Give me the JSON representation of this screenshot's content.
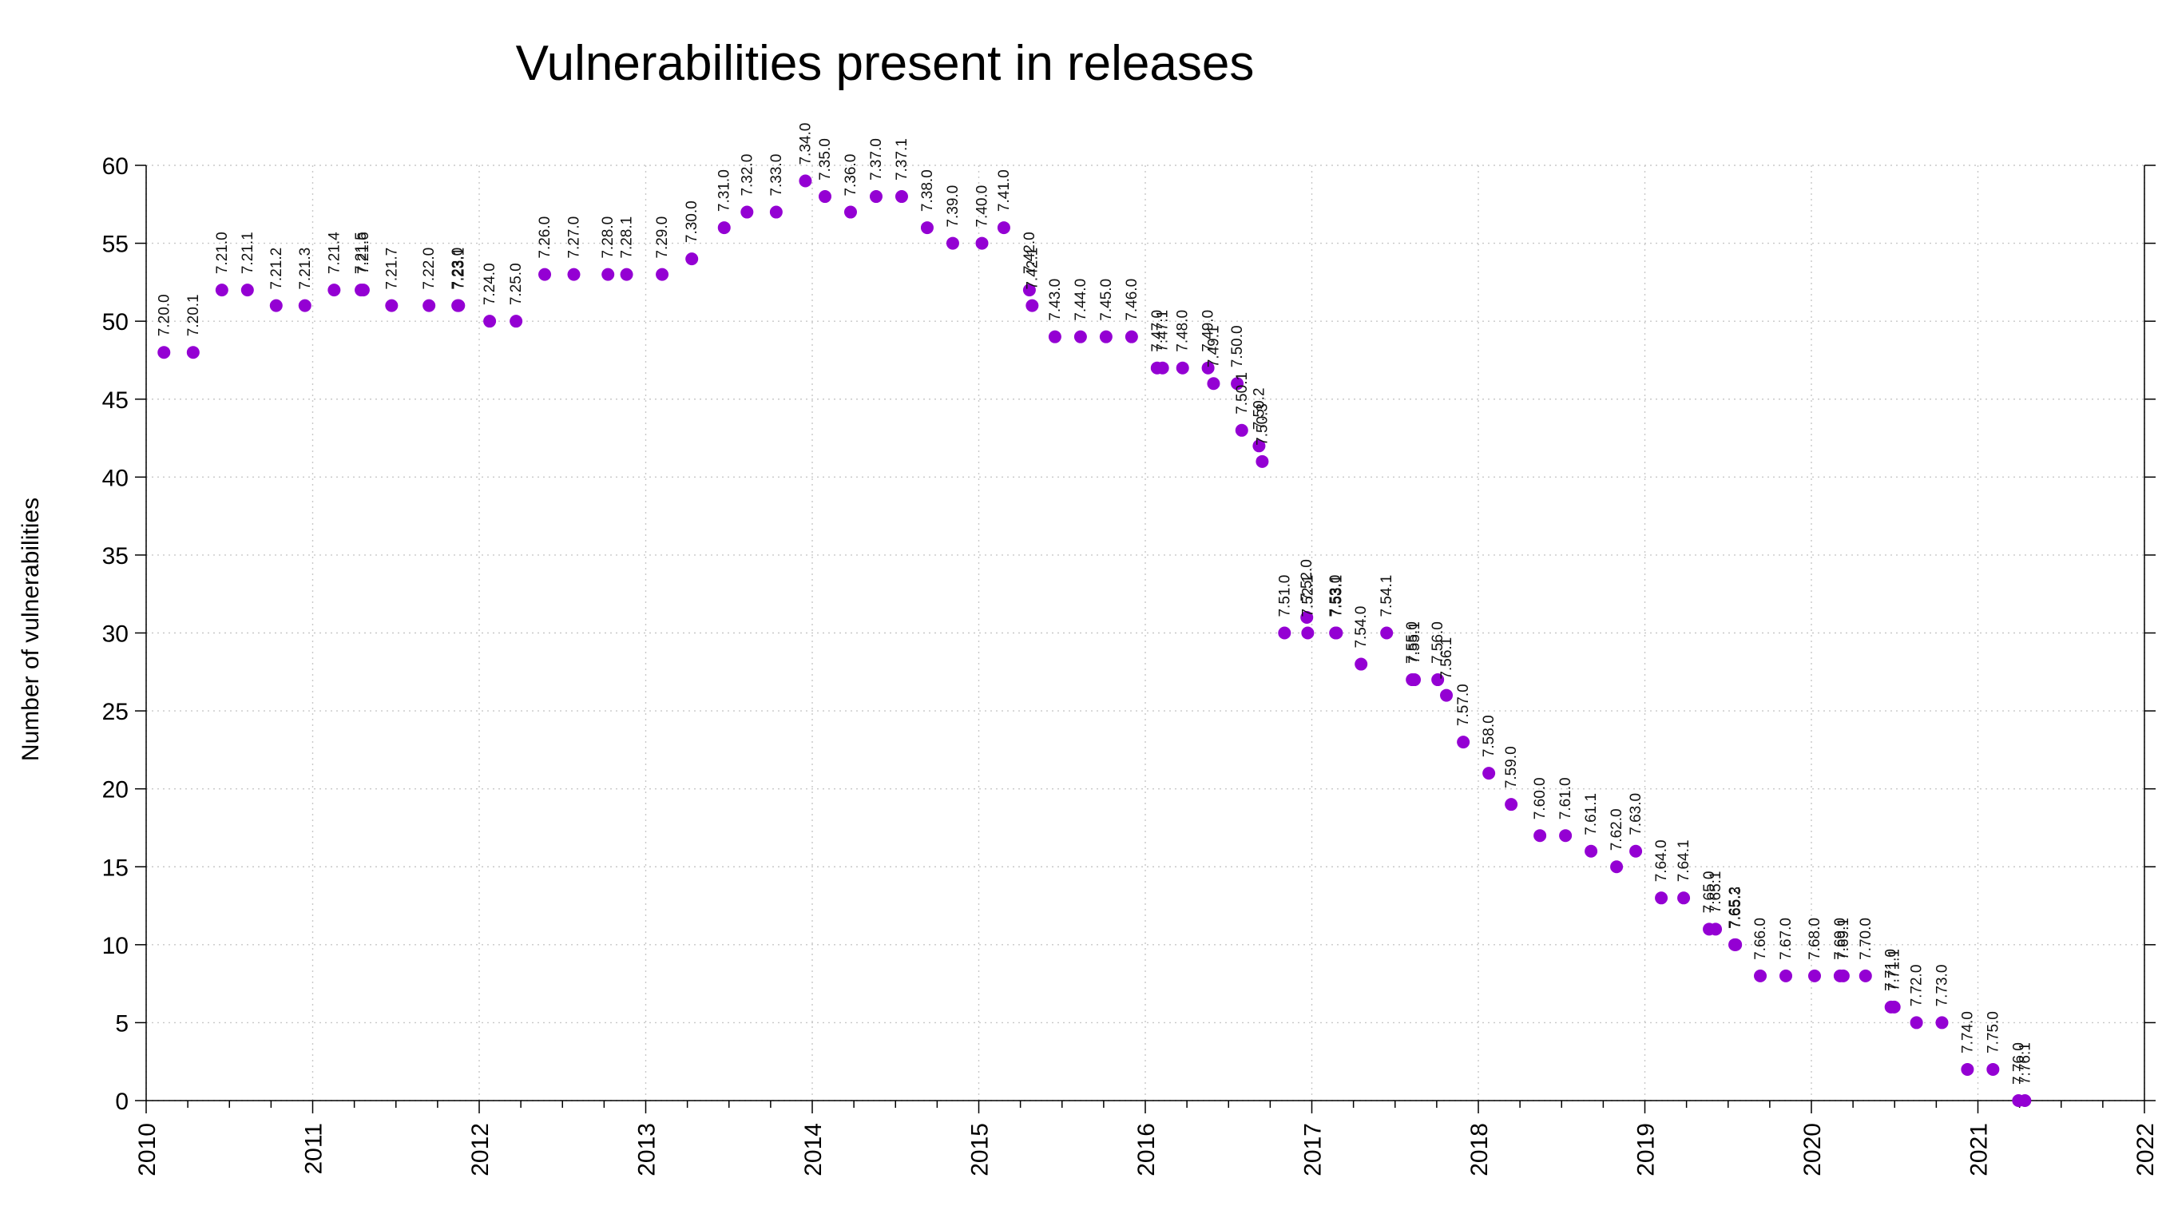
{
  "chart_data": {
    "type": "scatter",
    "title": "Vulnerabilities present in releases",
    "xlabel": "",
    "ylabel": "Number of vulnerabilities",
    "xlim": [
      "2010-01-01",
      "2022-01-01"
    ],
    "ylim": [
      0,
      60
    ],
    "x_ticks": [
      "2010",
      "2011",
      "2012",
      "2013",
      "2014",
      "2015",
      "2016",
      "2017",
      "2018",
      "2019",
      "2020",
      "2021",
      "2022"
    ],
    "y_ticks": [
      0,
      5,
      10,
      15,
      20,
      25,
      30,
      35,
      40,
      45,
      50,
      55,
      60
    ],
    "grid": true,
    "marker_color": "#9400d3",
    "points": [
      {
        "label": "7.20.0",
        "x": "2010-02-09",
        "y": 48
      },
      {
        "label": "7.20.1",
        "x": "2010-04-14",
        "y": 48
      },
      {
        "label": "7.21.0",
        "x": "2010-06-16",
        "y": 52
      },
      {
        "label": "7.21.1",
        "x": "2010-08-11",
        "y": 52
      },
      {
        "label": "7.21.2",
        "x": "2010-10-13",
        "y": 51
      },
      {
        "label": "7.21.3",
        "x": "2010-12-15",
        "y": 51
      },
      {
        "label": "7.21.4",
        "x": "2011-02-17",
        "y": 52
      },
      {
        "label": "7.21.5",
        "x": "2011-04-17",
        "y": 52
      },
      {
        "label": "7.21.6",
        "x": "2011-04-22",
        "y": 52
      },
      {
        "label": "7.21.7",
        "x": "2011-06-23",
        "y": 51
      },
      {
        "label": "7.22.0",
        "x": "2011-09-13",
        "y": 51
      },
      {
        "label": "7.23.0",
        "x": "2011-11-15",
        "y": 51
      },
      {
        "label": "7.23.1",
        "x": "2011-11-17",
        "y": 51
      },
      {
        "label": "7.24.0",
        "x": "2012-01-24",
        "y": 50
      },
      {
        "label": "7.25.0",
        "x": "2012-03-22",
        "y": 50
      },
      {
        "label": "7.26.0",
        "x": "2012-05-24",
        "y": 53
      },
      {
        "label": "7.27.0",
        "x": "2012-07-27",
        "y": 53
      },
      {
        "label": "7.28.0",
        "x": "2012-10-10",
        "y": 53
      },
      {
        "label": "7.28.1",
        "x": "2012-11-20",
        "y": 53
      },
      {
        "label": "7.29.0",
        "x": "2013-02-06",
        "y": 53
      },
      {
        "label": "7.30.0",
        "x": "2013-04-12",
        "y": 54
      },
      {
        "label": "7.31.0",
        "x": "2013-06-22",
        "y": 56
      },
      {
        "label": "7.32.0",
        "x": "2013-08-11",
        "y": 57
      },
      {
        "label": "7.33.0",
        "x": "2013-10-14",
        "y": 57
      },
      {
        "label": "7.34.0",
        "x": "2013-12-17",
        "y": 59
      },
      {
        "label": "7.35.0",
        "x": "2014-01-29",
        "y": 58
      },
      {
        "label": "7.36.0",
        "x": "2014-03-26",
        "y": 57
      },
      {
        "label": "7.37.0",
        "x": "2014-05-21",
        "y": 58
      },
      {
        "label": "7.37.1",
        "x": "2014-07-16",
        "y": 58
      },
      {
        "label": "7.38.0",
        "x": "2014-09-10",
        "y": 56
      },
      {
        "label": "7.39.0",
        "x": "2014-11-05",
        "y": 55
      },
      {
        "label": "7.40.0",
        "x": "2015-01-08",
        "y": 55
      },
      {
        "label": "7.41.0",
        "x": "2015-02-25",
        "y": 56
      },
      {
        "label": "7.42.0",
        "x": "2015-04-22",
        "y": 52
      },
      {
        "label": "7.42.1",
        "x": "2015-04-28",
        "y": 51
      },
      {
        "label": "7.43.0",
        "x": "2015-06-17",
        "y": 49
      },
      {
        "label": "7.44.0",
        "x": "2015-08-12",
        "y": 49
      },
      {
        "label": "7.45.0",
        "x": "2015-10-07",
        "y": 49
      },
      {
        "label": "7.46.0",
        "x": "2015-12-02",
        "y": 49
      },
      {
        "label": "7.47.0",
        "x": "2016-01-27",
        "y": 47
      },
      {
        "label": "7.47.1",
        "x": "2016-02-08",
        "y": 47
      },
      {
        "label": "7.48.0",
        "x": "2016-03-23",
        "y": 47
      },
      {
        "label": "7.49.0",
        "x": "2016-05-18",
        "y": 47
      },
      {
        "label": "7.49.1",
        "x": "2016-05-30",
        "y": 46
      },
      {
        "label": "7.50.0",
        "x": "2016-07-21",
        "y": 46
      },
      {
        "label": "7.50.1",
        "x": "2016-07-31",
        "y": 43
      },
      {
        "label": "7.50.2",
        "x": "2016-09-07",
        "y": 42
      },
      {
        "label": "7.50.3",
        "x": "2016-09-14",
        "y": 41
      },
      {
        "label": "7.51.0",
        "x": "2016-11-02",
        "y": 30
      },
      {
        "label": "7.52.0",
        "x": "2016-12-21",
        "y": 31
      },
      {
        "label": "7.52.1",
        "x": "2016-12-23",
        "y": 30
      },
      {
        "label": "7.53.0",
        "x": "2017-02-22",
        "y": 30
      },
      {
        "label": "7.53.1",
        "x": "2017-02-24",
        "y": 30
      },
      {
        "label": "7.54.0",
        "x": "2017-04-19",
        "y": 28
      },
      {
        "label": "7.54.1",
        "x": "2017-06-14",
        "y": 30
      },
      {
        "label": "7.55.0",
        "x": "2017-08-09",
        "y": 27
      },
      {
        "label": "7.55.1",
        "x": "2017-08-14",
        "y": 27
      },
      {
        "label": "7.56.0",
        "x": "2017-10-04",
        "y": 27
      },
      {
        "label": "7.56.1",
        "x": "2017-10-23",
        "y": 26
      },
      {
        "label": "7.57.0",
        "x": "2017-11-29",
        "y": 23
      },
      {
        "label": "7.58.0",
        "x": "2018-01-24",
        "y": 21
      },
      {
        "label": "7.59.0",
        "x": "2018-03-14",
        "y": 19
      },
      {
        "label": "7.60.0",
        "x": "2018-05-16",
        "y": 17
      },
      {
        "label": "7.61.0",
        "x": "2018-07-11",
        "y": 17
      },
      {
        "label": "7.61.1",
        "x": "2018-09-05",
        "y": 16
      },
      {
        "label": "7.62.0",
        "x": "2018-10-31",
        "y": 15
      },
      {
        "label": "7.63.0",
        "x": "2018-12-12",
        "y": 16
      },
      {
        "label": "7.64.0",
        "x": "2019-02-06",
        "y": 13
      },
      {
        "label": "7.64.1",
        "x": "2019-03-27",
        "y": 13
      },
      {
        "label": "7.65.0",
        "x": "2019-05-22",
        "y": 11
      },
      {
        "label": "7.65.1",
        "x": "2019-06-05",
        "y": 11
      },
      {
        "label": "7.65.2",
        "x": "2019-07-17",
        "y": 10
      },
      {
        "label": "7.65.3",
        "x": "2019-07-19",
        "y": 10
      },
      {
        "label": "7.66.0",
        "x": "2019-09-11",
        "y": 8
      },
      {
        "label": "7.67.0",
        "x": "2019-11-06",
        "y": 8
      },
      {
        "label": "7.68.0",
        "x": "2020-01-08",
        "y": 8
      },
      {
        "label": "7.69.0",
        "x": "2020-03-04",
        "y": 8
      },
      {
        "label": "7.69.1",
        "x": "2020-03-11",
        "y": 8
      },
      {
        "label": "7.70.0",
        "x": "2020-04-29",
        "y": 8
      },
      {
        "label": "7.71.0",
        "x": "2020-06-24",
        "y": 6
      },
      {
        "label": "7.71.1",
        "x": "2020-07-01",
        "y": 6
      },
      {
        "label": "7.72.0",
        "x": "2020-08-19",
        "y": 5
      },
      {
        "label": "7.73.0",
        "x": "2020-10-14",
        "y": 5
      },
      {
        "label": "7.74.0",
        "x": "2020-12-09",
        "y": 2
      },
      {
        "label": "7.75.0",
        "x": "2021-02-03",
        "y": 2
      },
      {
        "label": "7.76.0",
        "x": "2021-03-31",
        "y": 0
      },
      {
        "label": "7.76.1",
        "x": "2021-04-14",
        "y": 0
      }
    ]
  }
}
